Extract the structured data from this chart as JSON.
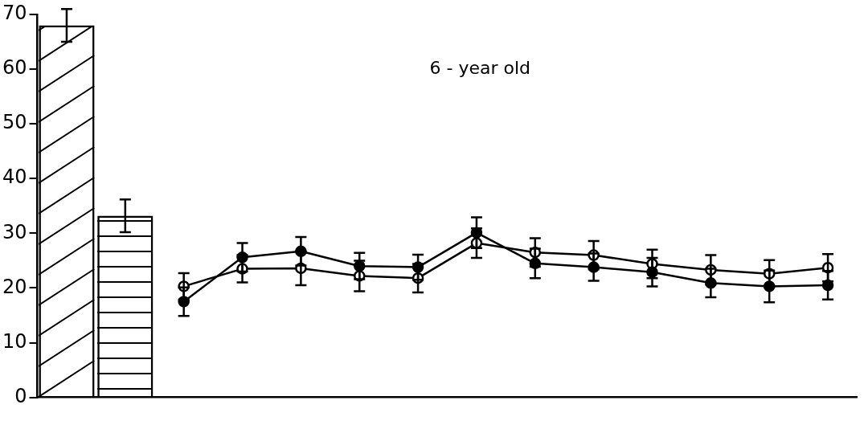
{
  "chart_data": {
    "type": "bar",
    "annotations": [
      "6 - year old"
    ],
    "categories": [
      null,
      null,
      null,
      null,
      null,
      null,
      null,
      null,
      null,
      null,
      null,
      null,
      null,
      null
    ],
    "series": [
      {
        "color": "#000000",
        "values": [
          68,
          33.2,
          null,
          null,
          null,
          null,
          null,
          null,
          null,
          null,
          null,
          null,
          null,
          null
        ],
        "errors": [
          3,
          3,
          null,
          null,
          null,
          null,
          null,
          null,
          null,
          null,
          null,
          null,
          null,
          null
        ]
      },
      {
        "type": "line",
        "color": "#000000",
        "values": [
          null,
          null,
          17.5,
          25.6,
          26.7,
          24.0,
          23.8,
          30.1,
          24.5,
          23.8,
          22.9,
          20.9,
          20.3,
          20.5
        ],
        "errors": [
          null,
          null,
          2.6,
          2.6,
          2.6,
          2.4,
          2.3,
          2.8,
          2.7,
          2.5,
          2.6,
          2.6,
          2.9,
          2.6
        ]
      },
      {
        "type": "line",
        "color": "#000000",
        "values": [
          null,
          null,
          20.3,
          23.5,
          23.6,
          22.2,
          21.8,
          28.2,
          26.5,
          26.0,
          24.4,
          23.3,
          22.6,
          23.7
        ],
        "errors": [
          null,
          null,
          2.4,
          2.5,
          3.1,
          2.8,
          2.6,
          2.7,
          2.6,
          2.6,
          2.6,
          2.7,
          2.5,
          2.5
        ]
      }
    ],
    "ylim": [
      0,
      70
    ],
    "yticks": [
      0,
      10,
      20,
      30,
      40,
      50,
      60,
      70
    ],
    "grid": false,
    "legend": false,
    "marker": "circle",
    "line_style": "solid"
  }
}
